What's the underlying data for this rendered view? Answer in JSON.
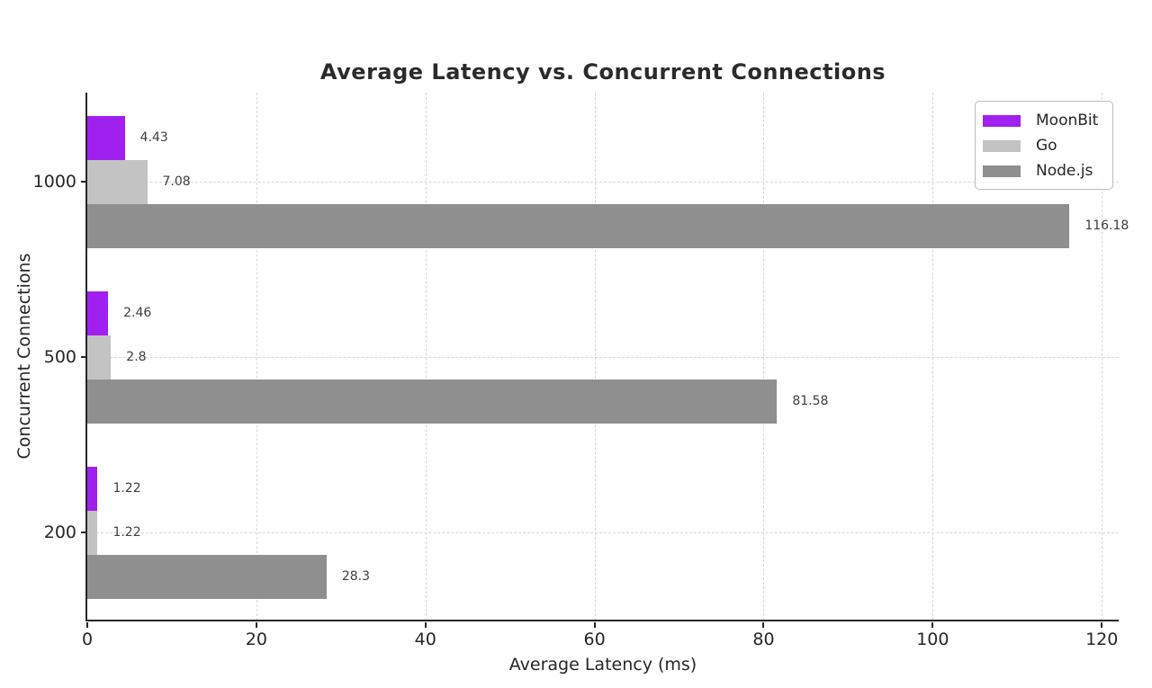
{
  "figure": {
    "background_color": "#ffffff",
    "text_color": "#262626",
    "grid_color": "#d7d7d7"
  },
  "chart_data": {
    "type": "bar",
    "orientation": "horizontal",
    "title": "Average Latency vs. Concurrent Connections",
    "xlabel": "Average Latency (ms)",
    "ylabel": "Concurrent Connections",
    "categories": [
      "1000",
      "500",
      "200"
    ],
    "series": [
      {
        "name": "MoonBit",
        "color": "#a020f0",
        "values": [
          4.43,
          2.46,
          1.22
        ],
        "value_labels": [
          "4.43",
          "2.46",
          "1.22"
        ]
      },
      {
        "name": "Go",
        "color": "#c3c3c3",
        "values": [
          7.08,
          2.8,
          1.22
        ],
        "value_labels": [
          "7.08",
          "2.8",
          "1.22"
        ]
      },
      {
        "name": "Node.js",
        "color": "#8f8f8f",
        "values": [
          116.18,
          81.58,
          28.3
        ],
        "value_labels": [
          "116.18",
          "81.58",
          "28.3"
        ]
      }
    ],
    "xlim": [
      0,
      122
    ],
    "xticks": [
      0,
      20,
      40,
      60,
      80,
      100,
      120
    ],
    "grid": true,
    "legend_position": "upper right",
    "legend_entries": [
      "MoonBit",
      "Go",
      "Node.js"
    ]
  }
}
